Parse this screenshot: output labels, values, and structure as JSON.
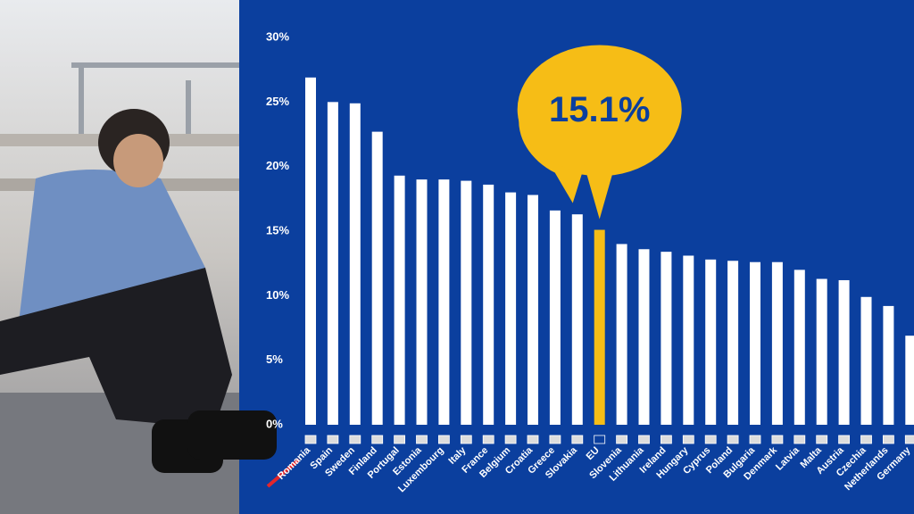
{
  "chart_data": {
    "type": "bar",
    "categories": [
      "Romania",
      "Spain",
      "Sweden",
      "Finland",
      "Portugal",
      "Estonia",
      "Luxembourg",
      "Italy",
      "France",
      "Belgium",
      "Croatia",
      "Greece",
      "Slovakia",
      "EU",
      "Slovenia",
      "Lithuania",
      "Ireland",
      "Hungary",
      "Cyprus",
      "Poland",
      "Bulgaria",
      "Denmark",
      "Latvia",
      "Malta",
      "Austria",
      "Czechia",
      "Netherlands",
      "Germany"
    ],
    "values": [
      26.9,
      25.0,
      24.9,
      22.7,
      19.3,
      19.0,
      19.0,
      18.9,
      18.6,
      18.0,
      17.8,
      16.6,
      16.3,
      15.1,
      14.0,
      13.6,
      13.4,
      13.1,
      12.8,
      12.7,
      12.6,
      12.6,
      12.0,
      11.3,
      11.2,
      9.9,
      9.2,
      6.9
    ],
    "value_labels": [
      null,
      null,
      null,
      null,
      null,
      null,
      null,
      null,
      null,
      null,
      null,
      null,
      null,
      "15.1%",
      null,
      null,
      null,
      null,
      null,
      null,
      null,
      null,
      null,
      null,
      null,
      null,
      null,
      null
    ],
    "colors": [
      "#ffffff",
      "#ffffff",
      "#ffffff",
      "#ffffff",
      "#ffffff",
      "#ffffff",
      "#ffffff",
      "#ffffff",
      "#ffffff",
      "#ffffff",
      "#ffffff",
      "#ffffff",
      "#ffffff",
      "#f6bd16",
      "#ffffff",
      "#ffffff",
      "#ffffff",
      "#ffffff",
      "#ffffff",
      "#ffffff",
      "#ffffff",
      "#ffffff",
      "#ffffff",
      "#ffffff",
      "#ffffff",
      "#ffffff",
      "#ffffff",
      "#ffffff"
    ],
    "ylim": [
      0,
      30
    ],
    "yticks": [
      {
        "value": 0,
        "label": "0%"
      },
      {
        "value": 5,
        "label": "5%"
      },
      {
        "value": 10,
        "label": "10%"
      },
      {
        "value": 15,
        "label": "15%"
      },
      {
        "value": 20,
        "label": "20%"
      },
      {
        "value": 25,
        "label": "25%"
      },
      {
        "value": 30,
        "label": "30%"
      }
    ],
    "grid": false
  }
}
